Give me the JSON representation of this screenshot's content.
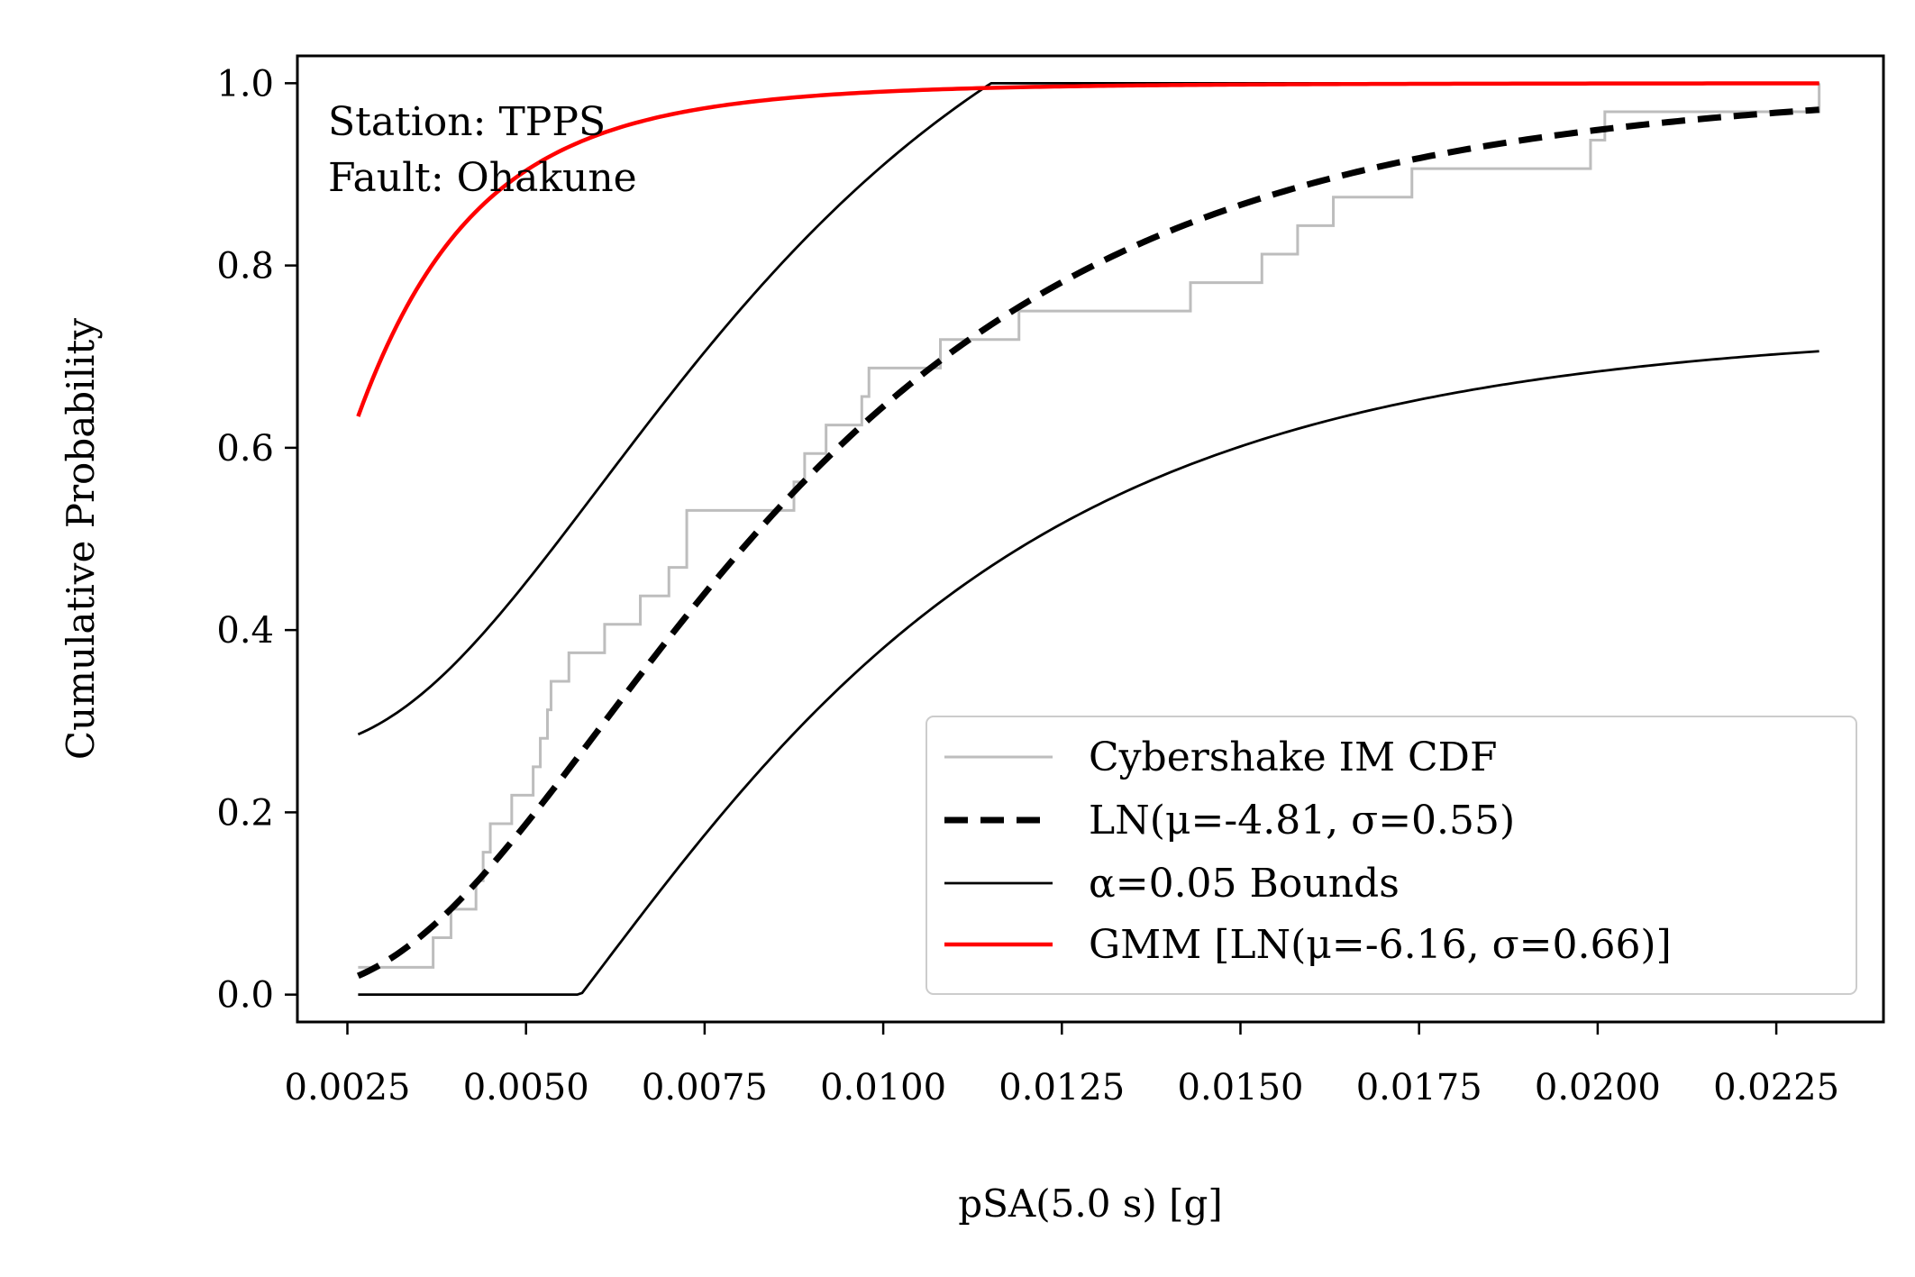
{
  "chart_data": {
    "type": "line",
    "xlabel": "pSA(5.0 s) [g]",
    "ylabel": "Cumulative Probability",
    "xlim": [
      0.0018,
      0.024
    ],
    "ylim": [
      -0.03,
      1.03
    ],
    "xticks": [
      0.0025,
      0.005,
      0.0075,
      0.01,
      0.0125,
      0.015,
      0.0175,
      0.02,
      0.0225
    ],
    "xtick_labels": [
      "0.0025",
      "0.0050",
      "0.0075",
      "0.0100",
      "0.0125",
      "0.0150",
      "0.0175",
      "0.0200",
      "0.0225"
    ],
    "yticks": [
      0.0,
      0.2,
      0.4,
      0.6,
      0.8,
      1.0
    ],
    "ytick_labels": [
      "0.0",
      "0.2",
      "0.4",
      "0.6",
      "0.8",
      "1.0"
    ],
    "grid": false,
    "legend_position": "bottom-right",
    "annotations": [
      "Station: TPPS",
      "Fault: Ohakune"
    ],
    "series": [
      {
        "name": "Cybershake IM CDF",
        "style": "step",
        "color": "#bdbdbd",
        "x": [
          0.00265,
          0.0037,
          0.00395,
          0.0043,
          0.0044,
          0.0045,
          0.0048,
          0.0049,
          0.0051,
          0.0052,
          0.00525,
          0.0053,
          0.00535,
          0.0056,
          0.0061,
          0.0066,
          0.007,
          0.00725,
          0.0073,
          0.00875,
          0.0089,
          0.0092,
          0.0097,
          0.0098,
          0.0103,
          0.0108,
          0.0111,
          0.0119,
          0.0143,
          0.0153,
          0.0158,
          0.0163,
          0.0174,
          0.0184,
          0.0199,
          0.0201,
          0.0231
        ],
        "y": [
          0.03,
          0.0625,
          0.09375,
          0.125,
          0.15625,
          0.1875,
          0.21875,
          0.21875,
          0.25,
          0.28125,
          0.28125,
          0.3125,
          0.34375,
          0.375,
          0.40625,
          0.4375,
          0.46875,
          0.53125,
          0.53125,
          0.5625,
          0.59375,
          0.625,
          0.65625,
          0.6875,
          0.6875,
          0.71875,
          0.71875,
          0.75,
          0.78125,
          0.8125,
          0.84375,
          0.875,
          0.90625,
          0.90625,
          0.9375,
          0.96875,
          1.0
        ]
      },
      {
        "name": "LN(μ=-4.81, σ=0.55)",
        "style": "dashed",
        "color": "#000000",
        "mu": -4.81,
        "sigma": 0.55
      },
      {
        "name": "α=0.05 Bounds",
        "style": "solid",
        "color": "#000000",
        "band": 0.265
      },
      {
        "name": "GMM [LN(μ=-6.16, σ=0.66)]",
        "style": "solid",
        "color": "#ff0000",
        "mu": -6.16,
        "sigma": 0.66
      }
    ],
    "x_range": [
      0.00265,
      0.0231
    ]
  }
}
